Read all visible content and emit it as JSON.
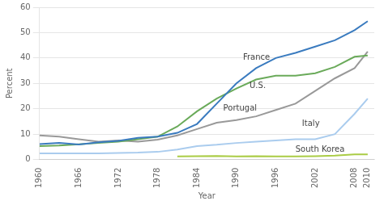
{
  "chart_data": {
    "type": "line",
    "xlabel": "Year",
    "ylabel": "Percent",
    "xlim": [
      1960,
      2011
    ],
    "ylim": [
      0,
      60
    ],
    "xticks": [
      1960,
      1966,
      1972,
      1978,
      1984,
      1990,
      1996,
      2002,
      2008,
      2010
    ],
    "yticks": [
      0,
      10,
      20,
      30,
      40,
      50,
      60
    ],
    "grid": "y",
    "series": [
      {
        "name": "France",
        "color": "#3a7bbf",
        "x": [
          1960,
          1963,
          1966,
          1969,
          1972,
          1975,
          1978,
          1981,
          1984,
          1987,
          1990,
          1993,
          1996,
          1999,
          2002,
          2005,
          2008,
          2010
        ],
        "values": [
          6.1,
          6.5,
          5.9,
          6.8,
          7.3,
          8.5,
          9.0,
          10.5,
          14.0,
          22.0,
          30.0,
          36.0,
          40.0,
          42.0,
          44.5,
          47.0,
          51.0,
          54.5
        ]
      },
      {
        "name": "U.S.",
        "color": "#6aaa5a",
        "x": [
          1960,
          1963,
          1966,
          1969,
          1972,
          1975,
          1978,
          1981,
          1984,
          1987,
          1990,
          1993,
          1996,
          1999,
          2002,
          2005,
          2008,
          2010
        ],
        "values": [
          5.3,
          5.5,
          6.0,
          6.5,
          7.0,
          8.0,
          9.0,
          13.0,
          19.0,
          24.0,
          28.0,
          31.5,
          33.0,
          33.0,
          34.0,
          36.5,
          40.5,
          41.0
        ]
      },
      {
        "name": "Portugal",
        "color": "#999999",
        "x": [
          1960,
          1963,
          1966,
          1969,
          1972,
          1975,
          1978,
          1981,
          1984,
          1987,
          1990,
          1993,
          1996,
          1999,
          2002,
          2005,
          2008,
          2010
        ],
        "values": [
          9.5,
          9.0,
          8.0,
          7.0,
          7.5,
          7.0,
          7.8,
          9.5,
          12.0,
          14.5,
          15.5,
          17.0,
          19.5,
          22.0,
          27.0,
          32.0,
          36.0,
          42.5
        ]
      },
      {
        "name": "Italy",
        "color": "#aaccee",
        "x": [
          1960,
          1963,
          1966,
          1969,
          1972,
          1975,
          1978,
          1981,
          1984,
          1987,
          1990,
          1993,
          1996,
          1999,
          2002,
          2005,
          2008,
          2010
        ],
        "values": [
          2.4,
          2.4,
          2.4,
          2.4,
          2.6,
          2.7,
          3.0,
          3.9,
          5.3,
          5.8,
          6.5,
          7.0,
          7.5,
          8.0,
          8.0,
          10.0,
          18.0,
          24.0
        ]
      },
      {
        "name": "South Korea",
        "color": "#aacc44",
        "x": [
          1981,
          1984,
          1987,
          1990,
          1993,
          1996,
          1999,
          2002,
          2005,
          2008,
          2010
        ],
        "values": [
          1.2,
          1.3,
          1.4,
          1.2,
          1.3,
          1.2,
          1.2,
          1.3,
          1.5,
          2.0,
          2.0
        ]
      }
    ],
    "annotations": [
      {
        "text": "France",
        "x": 1991,
        "y": 40
      },
      {
        "text": "U.S.",
        "x": 1992,
        "y": 29
      },
      {
        "text": "Portugal",
        "x": 1988,
        "y": 20
      },
      {
        "text": "Italy",
        "x": 2000,
        "y": 14
      },
      {
        "text": "South Korea",
        "x": 1999,
        "y": 4
      }
    ]
  }
}
